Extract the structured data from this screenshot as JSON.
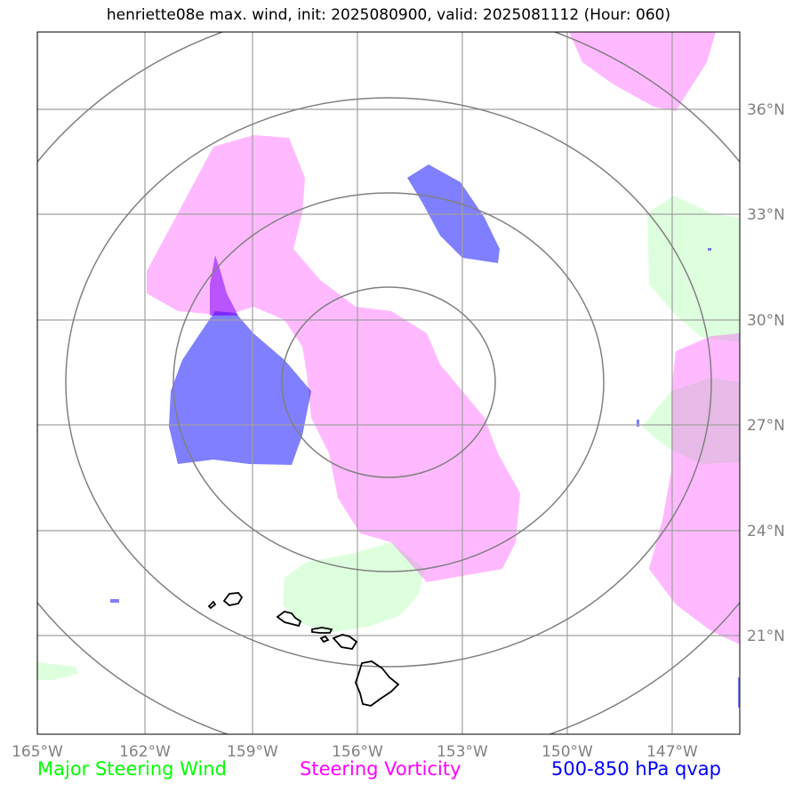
{
  "title": "henriette08e max. wind, init: 2025080900, valid: 2025081112 (Hour: 060)",
  "map": {
    "lon_ticks": [
      "165°W",
      "162°W",
      "159°W",
      "156°W",
      "153°W",
      "150°W",
      "147°W"
    ],
    "lat_ticks": [
      "36°N",
      "33°N",
      "30°N",
      "27°N",
      "24°N",
      "21°N"
    ],
    "range_rings": 4,
    "colors": {
      "major_steering_wind": "#00ff00",
      "steering_vorticity": "#ff00ff",
      "qvap": "#0000ff",
      "grid": "#a0a0a0",
      "rings": "#808080"
    }
  },
  "legend": {
    "wind": "Major Steering Wind",
    "vorticity": "Steering Vorticity",
    "qvap": "500-850 hPa qvap"
  }
}
